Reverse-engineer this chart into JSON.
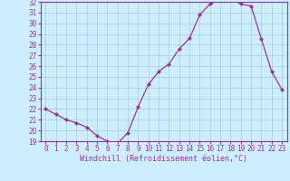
{
  "x": [
    0,
    1,
    2,
    3,
    4,
    5,
    6,
    7,
    8,
    9,
    10,
    11,
    12,
    13,
    14,
    15,
    16,
    17,
    18,
    19,
    20,
    21,
    22,
    23
  ],
  "y": [
    22.0,
    21.5,
    21.0,
    20.7,
    20.3,
    19.5,
    19.0,
    18.8,
    19.8,
    22.2,
    24.3,
    25.5,
    26.2,
    27.6,
    28.6,
    30.8,
    31.8,
    32.2,
    32.3,
    31.8,
    31.6,
    28.5,
    25.5,
    23.8
  ],
  "line_color": "#993399",
  "marker": "D",
  "marker_size": 2.0,
  "bg_color": "#cceeff",
  "grid_color": "#aacccc",
  "xlabel": "Windchill (Refroidissement éolien,°C)",
  "ylim": [
    19,
    32
  ],
  "xlim": [
    -0.5,
    23.5
  ],
  "yticks": [
    19,
    20,
    21,
    22,
    23,
    24,
    25,
    26,
    27,
    28,
    29,
    30,
    31,
    32
  ],
  "xticks": [
    0,
    1,
    2,
    3,
    4,
    5,
    6,
    7,
    8,
    9,
    10,
    11,
    12,
    13,
    14,
    15,
    16,
    17,
    18,
    19,
    20,
    21,
    22,
    23
  ],
  "axis_color": "#993399",
  "tick_color": "#993399",
  "label_color": "#993399",
  "tick_fontsize": 5.5,
  "label_fontsize": 6.0
}
